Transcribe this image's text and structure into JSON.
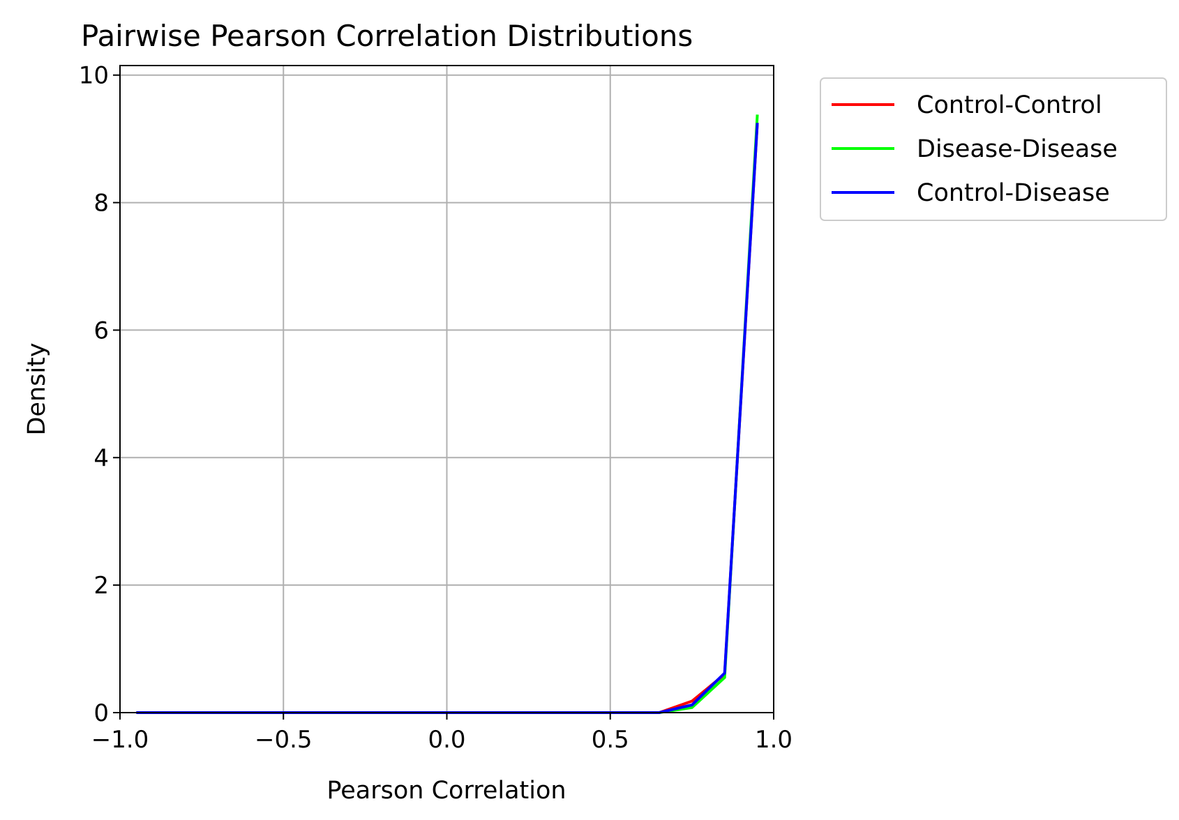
{
  "chart_data": {
    "type": "line",
    "title": "Pairwise Pearson Correlation Distributions",
    "xlabel": "Pearson Correlation",
    "ylabel": "Density",
    "xlim": [
      -1.0,
      1.0
    ],
    "ylim": [
      0,
      10.15
    ],
    "xticks": [
      -1.0,
      -0.5,
      0.0,
      0.5,
      1.0
    ],
    "xtick_labels": [
      "−1.0",
      "−0.5",
      "0.0",
      "0.5",
      "1.0"
    ],
    "yticks": [
      0,
      2,
      4,
      6,
      8,
      10
    ],
    "ytick_labels": [
      "0",
      "2",
      "4",
      "6",
      "8",
      "10"
    ],
    "grid": true,
    "legend_position": "outside upper right",
    "x": [
      -0.95,
      -0.85,
      -0.75,
      -0.65,
      -0.55,
      -0.45,
      -0.35,
      -0.25,
      -0.15,
      -0.05,
      0.05,
      0.15,
      0.25,
      0.35,
      0.45,
      0.55,
      0.65,
      0.75,
      0.85,
      0.95
    ],
    "series": [
      {
        "name": "Control-Control",
        "color": "#ff0000",
        "values": [
          0,
          0,
          0,
          0,
          0,
          0,
          0,
          0,
          0,
          0,
          0,
          0,
          0,
          0,
          0,
          0,
          0,
          0.18,
          0.6,
          9.25
        ]
      },
      {
        "name": "Disease-Disease",
        "color": "#00ff00",
        "values": [
          0,
          0,
          0,
          0,
          0,
          0,
          0,
          0,
          0,
          0,
          0,
          0,
          0,
          0,
          0,
          0,
          0,
          0.08,
          0.55,
          9.38
        ]
      },
      {
        "name": "Control-Disease",
        "color": "#0000ff",
        "values": [
          0,
          0,
          0,
          0,
          0,
          0,
          0,
          0,
          0,
          0,
          0,
          0,
          0,
          0,
          0,
          0,
          0,
          0.12,
          0.62,
          9.25
        ]
      }
    ]
  }
}
